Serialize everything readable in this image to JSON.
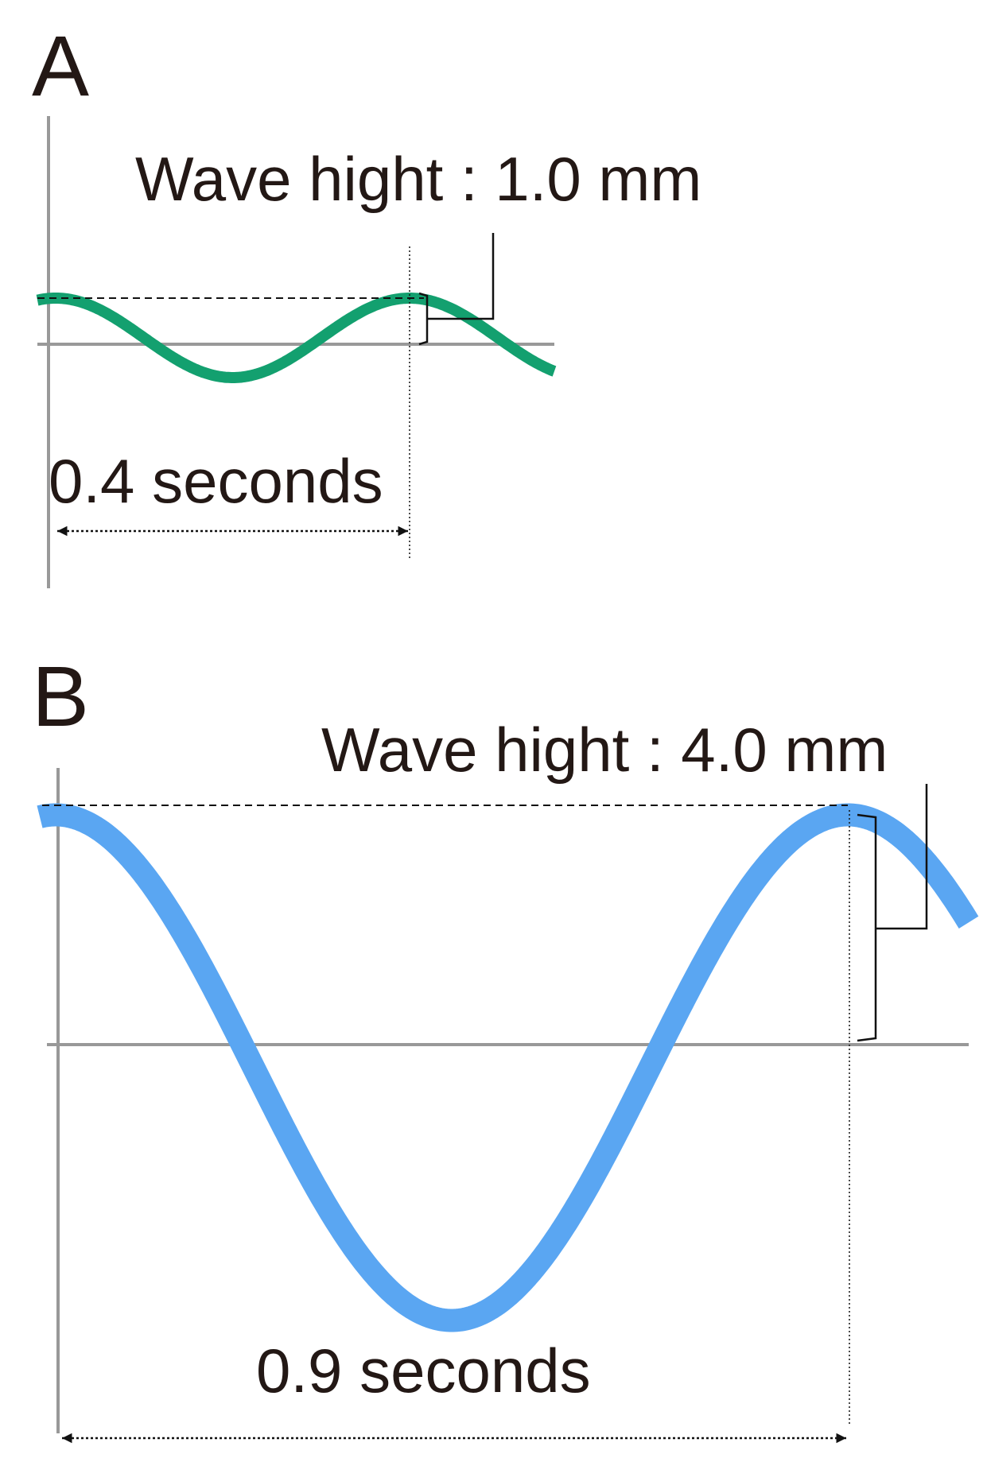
{
  "panels": [
    {
      "label": "A",
      "height_label": "Wave hight : 1.0 mm",
      "period_label": "0.4 seconds"
    },
    {
      "label": "B",
      "height_label": "Wave hight : 4.0 mm",
      "period_label": "0.9 seconds"
    }
  ]
}
